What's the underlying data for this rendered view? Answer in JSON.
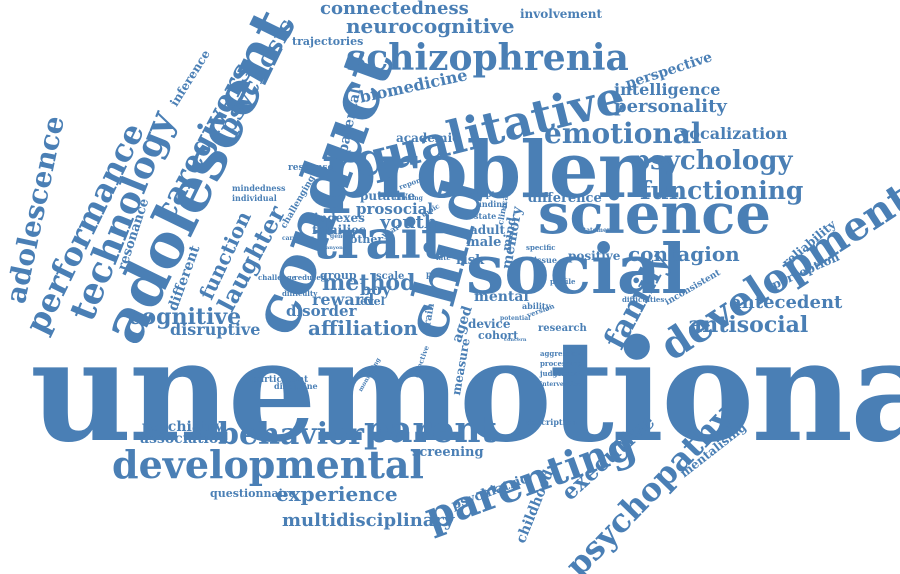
{
  "colors": {
    "ink": "#4a7fb5",
    "background": "#ffffff"
  },
  "words": {
    "unemotional": "unemotional",
    "problem": "problem",
    "conduct": "conduct",
    "adolescent": "adolescent",
    "social": "social",
    "science": "science",
    "child": "child",
    "trait": "trait",
    "qualitative": "qualitative",
    "schizophrenia": "schizophrenia",
    "development": "development",
    "parenting": "parenting",
    "developmental": "developmental",
    "technology": "technology",
    "performance": "performance",
    "adolescence": "adolescence",
    "caregivers": "caregivers",
    "psychopathy": "psychopathy",
    "parent": "parent",
    "behavior": "behavior",
    "emotional": "emotional",
    "psychology": "psychology",
    "functioning": "functioning",
    "family": "family",
    "contagion": "contagion",
    "antisocial": "antisocial",
    "antecedent": "antecedent",
    "connectedness": "connectedness",
    "neurocognitive": "neurocognitive",
    "psychosis": "psychosis",
    "laughter": "laughter",
    "function": "function",
    "cognitive": "cognitive",
    "disruptive": "disruptive",
    "affiliation": "affiliation",
    "method": "method",
    "reward": "reward",
    "disorder": "disorder",
    "experience": "experience",
    "multidisciplinary": "multidisciplinary",
    "executive": "executive",
    "psychiatry": "psychiatry",
    "association": "association",
    "questionnaire": "questionnaire",
    "intelligence": "intelligence",
    "personality": "personality",
    "vocalization": "vocalization",
    "biomedicine": "biomedicine",
    "perspective": "perspective",
    "involvement": "involvement",
    "trajectories": "trajectories",
    "resonance": "resonance",
    "different": "different",
    "inference": "inference",
    "parental": "parental",
    "academic": "academic",
    "mentalising": "mentalising",
    "childhood": "childhood",
    "psychiatric": "psychiatric",
    "screening": "screening",
    "perception": "perception",
    "reliability": "reliability",
    "difference": "difference",
    "positive": "positive",
    "youth": "youth",
    "prosocial": "prosocial",
    "putative": "putative",
    "indexes": "indexes",
    "families": "families",
    "mental": "mental",
    "device": "device",
    "cohort": "cohort",
    "memory": "memory",
    "aged": "aged",
    "measure": "measure",
    "mind": "mind",
    "male": "male",
    "risk": "risk",
    "adult": "adult",
    "group": "group",
    "boy": "boy",
    "level": "level",
    "scale": "scale",
    "other": "other",
    "research": "research",
    "participant": "participant",
    "challenging": "challenging",
    "response": "response",
    "mindedness": "mindedness",
    "individual": "individual",
    "challenge": "challenge",
    "reduced": "reduced",
    "difficulty": "difficulty",
    "discipline": "discipline",
    "inconsistent": "inconsistent",
    "difficulties": "difficulties",
    "aggression": "aggression",
    "judgement": "judgement",
    "processing": "processing",
    "description": "description",
    "issue": "issue",
    "chapter": "chapter",
    "finding": "finding",
    "clinical": "clinical",
    "state": "state",
    "ability": "ability",
    "potential": "potential",
    "concern": "concern",
    "brain": "brain",
    "late": "late",
    "proc": "proc",
    "year": "year",
    "report": "report",
    "thinking": "thinking",
    "topic": "topic",
    "general": "general",
    "specific": "specific",
    "version": "version",
    "profile": "profile",
    "statement": "statement",
    "intervention": "intervention",
    "affective": "affective",
    "monitoring": "monitoring",
    "caregiver": "caregiver",
    "anyone": "anyone",
    "personal": "personal",
    "most": "most",
    "impairment": "impairment",
    "relationship": "relationship",
    "expression": "expression",
    "approach": "approach",
    "stability": "stability",
    "vulnerability": "vulnerability",
    "evidence": "evidence",
    "context": "context",
    "factor": "factor",
    "outcome": "outcome",
    "symptom": "symptom",
    "empathy": "empathy"
  }
}
